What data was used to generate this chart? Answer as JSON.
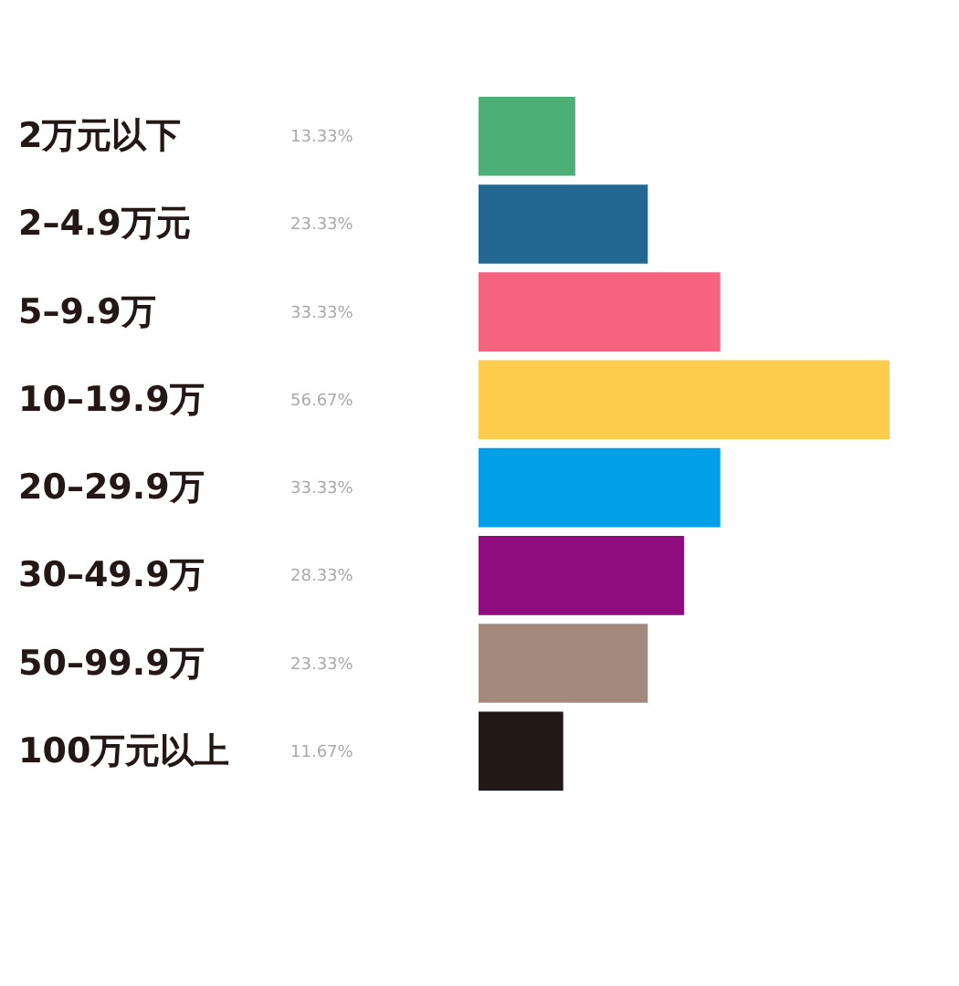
{
  "chart_data": {
    "type": "bar",
    "orientation": "horizontal",
    "categories": [
      "2万元以下",
      "2–4.9万元",
      "5–9.9万",
      "10–19.9万",
      "20–29.9万",
      "30–49.9万",
      "50–99.9万",
      "100万元以上"
    ],
    "values": [
      13.33,
      23.33,
      33.33,
      56.67,
      33.33,
      28.33,
      23.33,
      11.67
    ],
    "colors": [
      "#4caf75",
      "#226892",
      "#f5637f",
      "#ffcd4d",
      "#00a0e8",
      "#8e0c7e",
      "#a38a7c",
      "#231815"
    ],
    "value_labels": [
      "13.33%",
      "23.33%",
      "33.33%",
      "56.67%",
      "33.33%",
      "28.33%",
      "23.33%",
      "11.67%"
    ],
    "grid": false
  }
}
